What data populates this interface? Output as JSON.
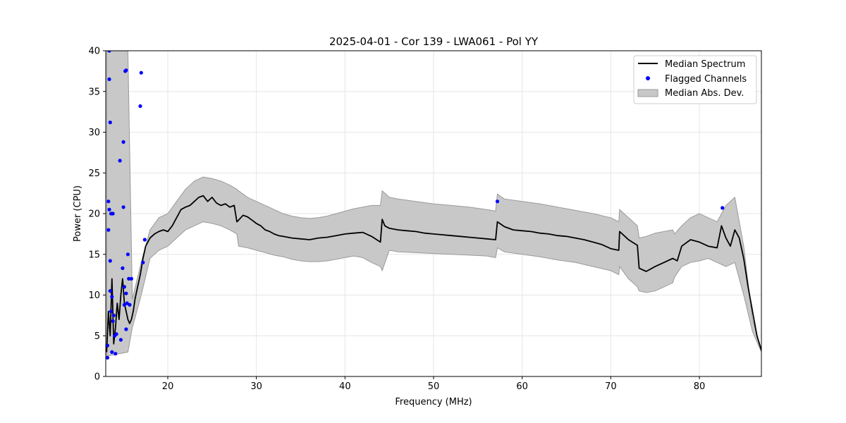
{
  "chart_data": {
    "type": "line",
    "title": "2025-04-01 - Cor 139 - LWA061 - Pol YY",
    "xlabel": "Frequency (MHz)",
    "ylabel": "Power (CPU)",
    "xlim": [
      13.0,
      87.0
    ],
    "ylim": [
      0,
      40
    ],
    "xticks": [
      20,
      30,
      40,
      50,
      60,
      70,
      80
    ],
    "yticks": [
      0,
      5,
      10,
      15,
      20,
      25,
      30,
      35,
      40
    ],
    "grid": true,
    "legend_position": "top-right",
    "legend": {
      "median": "Median Spectrum",
      "flagged": "Flagged Channels",
      "mad": "Median Abs. Dev."
    },
    "colors": {
      "median": "#000000",
      "flagged": "#0000ff",
      "band_fill": "#c8c8c8",
      "band_edge": "#9a9a9a"
    },
    "series": [
      {
        "name": "Median Spectrum",
        "x": [
          13.1,
          13.3,
          13.5,
          13.7,
          13.9,
          14.1,
          14.3,
          14.5,
          14.7,
          14.9,
          15.1,
          15.3,
          15.5,
          15.7,
          15.9,
          16.1,
          16.3,
          16.6,
          16.9,
          17.2,
          17.5,
          18.0,
          18.5,
          19.0,
          19.5,
          20.0,
          20.5,
          21.0,
          21.5,
          22.0,
          22.5,
          23.0,
          23.5,
          24.0,
          24.5,
          25.0,
          25.5,
          26.0,
          26.5,
          27.0,
          27.5,
          27.8,
          28.0,
          28.5,
          29.0,
          29.5,
          30.0,
          30.5,
          31.0,
          31.5,
          32.0,
          32.5,
          33.0,
          34.0,
          35.0,
          36.0,
          37.0,
          38.0,
          39.0,
          40.0,
          41.0,
          42.0,
          43.0,
          44.0,
          44.2,
          44.5,
          45.0,
          46.0,
          47.0,
          48.0,
          49.0,
          50.0,
          51.0,
          52.0,
          53.0,
          54.0,
          55.0,
          56.0,
          57.0,
          57.2,
          58.0,
          59.0,
          60.0,
          61.0,
          62.0,
          63.0,
          64.0,
          65.0,
          66.0,
          67.0,
          68.0,
          69.0,
          70.0,
          70.9,
          71.0,
          72.0,
          73.0,
          73.2,
          74.0,
          75.0,
          76.0,
          77.0,
          77.5,
          78.0,
          79.0,
          80.0,
          81.0,
          82.0,
          82.5,
          83.0,
          83.5,
          84.0,
          84.5,
          85.0,
          85.5,
          86.0,
          86.5,
          87.0
        ],
        "y": [
          3.0,
          8.0,
          5.0,
          12.0,
          4.0,
          6.0,
          9.0,
          7.0,
          10.0,
          12.0,
          9.0,
          8.0,
          7.0,
          6.5,
          7.0,
          8.0,
          9.5,
          11.0,
          12.5,
          14.5,
          16.0,
          17.0,
          17.5,
          17.8,
          18.0,
          17.8,
          18.5,
          19.5,
          20.5,
          20.8,
          21.0,
          21.5,
          22.0,
          22.2,
          21.5,
          22.0,
          21.3,
          21.0,
          21.2,
          20.8,
          21.0,
          19.0,
          19.2,
          19.8,
          19.6,
          19.2,
          18.8,
          18.5,
          18.0,
          17.8,
          17.5,
          17.3,
          17.2,
          17.0,
          16.9,
          16.8,
          17.0,
          17.1,
          17.3,
          17.5,
          17.6,
          17.7,
          17.2,
          16.5,
          19.3,
          18.5,
          18.2,
          18.0,
          17.9,
          17.8,
          17.6,
          17.5,
          17.4,
          17.3,
          17.2,
          17.1,
          17.0,
          16.9,
          16.8,
          19.0,
          18.4,
          18.0,
          17.9,
          17.8,
          17.6,
          17.5,
          17.3,
          17.2,
          17.0,
          16.8,
          16.5,
          16.2,
          15.7,
          15.5,
          17.8,
          16.8,
          16.1,
          13.3,
          12.9,
          13.5,
          14.0,
          14.5,
          14.2,
          16.0,
          16.8,
          16.5,
          16.0,
          15.8,
          18.5,
          17.0,
          16.0,
          18.0,
          17.0,
          14.5,
          11.0,
          8.0,
          5.0,
          3.2
        ]
      },
      {
        "name": "Median Abs. Dev.",
        "x": [
          13.1,
          15.5,
          16.0,
          17.0,
          18.0,
          19.0,
          20.0,
          21.0,
          22.0,
          23.0,
          24.0,
          25.0,
          26.0,
          27.0,
          27.8,
          28.0,
          29.0,
          30.0,
          31.0,
          32.0,
          33.0,
          34.0,
          35.0,
          36.0,
          37.0,
          38.0,
          39.0,
          40.0,
          41.0,
          42.0,
          43.0,
          44.0,
          44.2,
          45.0,
          46.0,
          48.0,
          50.0,
          52.0,
          54.0,
          56.0,
          57.0,
          57.2,
          58.0,
          60.0,
          62.0,
          64.0,
          66.0,
          68.0,
          70.0,
          70.9,
          71.0,
          72.0,
          73.0,
          73.2,
          74.0,
          75.0,
          76.0,
          77.0,
          77.2,
          78.0,
          79.0,
          80.0,
          81.0,
          82.0,
          83.0,
          84.0,
          85.0,
          86.0,
          87.0
        ],
        "upper": [
          40,
          40,
          9.5,
          14.0,
          18.0,
          19.5,
          20.0,
          21.5,
          23.0,
          24.0,
          24.5,
          24.3,
          24.0,
          23.5,
          23.0,
          22.8,
          22.0,
          21.5,
          21.0,
          20.5,
          20.0,
          19.7,
          19.5,
          19.4,
          19.5,
          19.7,
          20.0,
          20.3,
          20.6,
          20.8,
          21.0,
          21.0,
          22.8,
          22.0,
          21.8,
          21.5,
          21.2,
          21.0,
          20.8,
          20.5,
          20.3,
          22.4,
          21.8,
          21.5,
          21.2,
          20.8,
          20.4,
          20.0,
          19.5,
          19.0,
          20.5,
          19.5,
          18.5,
          17.0,
          17.2,
          17.6,
          17.8,
          18.0,
          17.5,
          18.5,
          19.5,
          20.0,
          19.5,
          19.0,
          21.0,
          22.0,
          16.0,
          7.0,
          3.3
        ],
        "lower": [
          2.5,
          3.0,
          6.0,
          10.0,
          14.5,
          15.5,
          16.0,
          17.0,
          18.0,
          18.5,
          19.0,
          18.8,
          18.5,
          18.0,
          17.5,
          16.0,
          15.8,
          15.5,
          15.2,
          14.9,
          14.7,
          14.4,
          14.2,
          14.1,
          14.1,
          14.2,
          14.4,
          14.6,
          14.8,
          14.6,
          14.0,
          13.5,
          13.0,
          15.5,
          15.3,
          15.2,
          15.1,
          15.0,
          14.9,
          14.8,
          14.6,
          15.8,
          15.3,
          15.0,
          14.7,
          14.3,
          14.0,
          13.5,
          13.0,
          12.5,
          13.5,
          12.0,
          11.0,
          10.5,
          10.3,
          10.5,
          11.0,
          11.5,
          12.2,
          13.5,
          14.0,
          14.2,
          14.5,
          14.0,
          13.5,
          14.0,
          10.0,
          5.5,
          3.0
        ]
      },
      {
        "name": "Flagged Channels",
        "x": [
          13.2,
          13.2,
          13.3,
          13.3,
          13.4,
          13.4,
          13.4,
          13.5,
          13.5,
          13.5,
          13.6,
          13.6,
          13.7,
          13.7,
          13.8,
          13.8,
          13.9,
          14.0,
          14.1,
          14.2,
          14.6,
          14.7,
          14.9,
          15.0,
          15.0,
          15.1,
          15.1,
          15.2,
          15.3,
          15.3,
          15.3,
          15.4,
          15.5,
          15.6,
          15.7,
          15.9,
          16.9,
          17.0,
          17.2,
          17.4,
          57.2,
          82.6
        ],
        "y": [
          2.3,
          3.8,
          18.0,
          21.5,
          40.0,
          36.5,
          20.5,
          31.2,
          14.2,
          10.5,
          8.0,
          20.0,
          3.0,
          9.8,
          6.8,
          20.0,
          7.5,
          5.0,
          2.8,
          5.2,
          26.5,
          4.5,
          13.3,
          20.8,
          28.8,
          8.8,
          11.0,
          37.5,
          37.6,
          10.2,
          5.8,
          9.0,
          15.0,
          12.0,
          8.8,
          12.0,
          33.2,
          37.3,
          14.0,
          16.8,
          21.5,
          20.7
        ]
      }
    ]
  }
}
